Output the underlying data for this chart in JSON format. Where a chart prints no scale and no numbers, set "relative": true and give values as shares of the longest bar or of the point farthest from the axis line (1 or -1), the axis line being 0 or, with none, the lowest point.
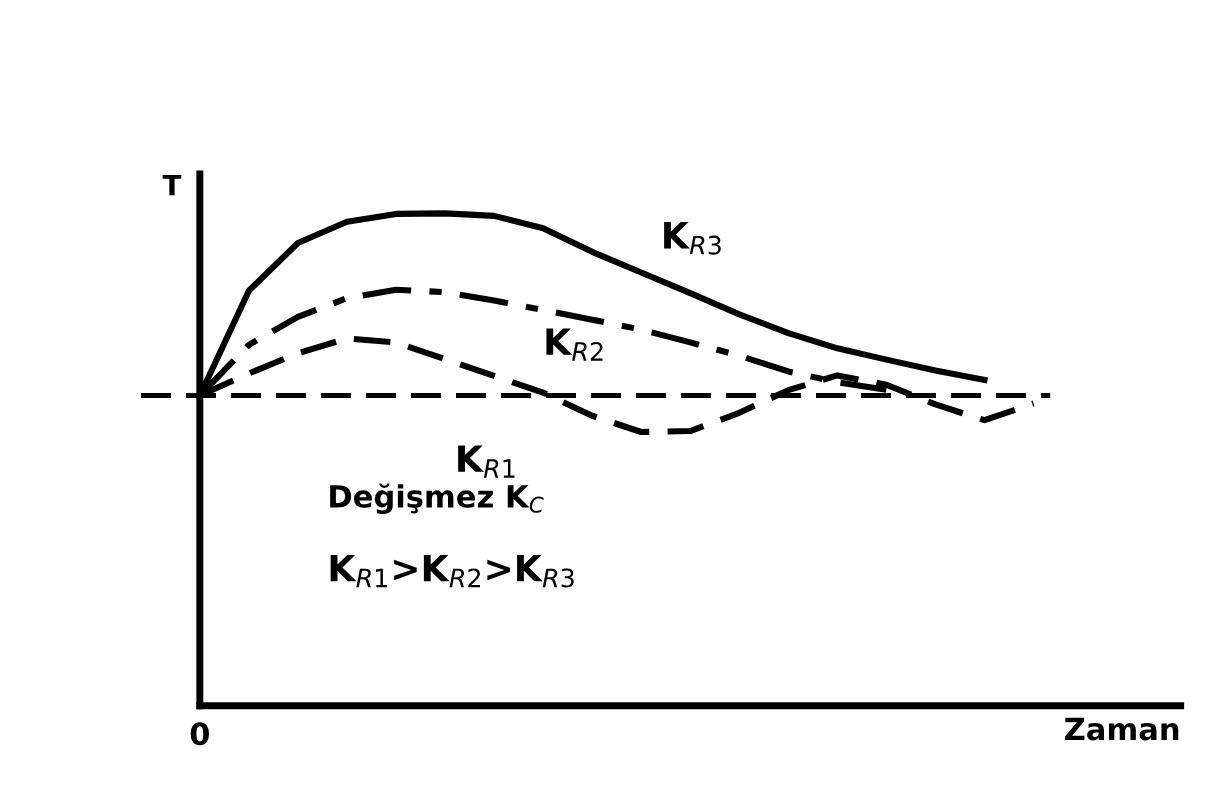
{
  "chart_data": {
    "type": "line",
    "relative": true,
    "xlabel": "Zaman",
    "ylabel": "T",
    "legend": false,
    "marker": "none",
    "categories": [
      null,
      null,
      null,
      null,
      null,
      null,
      null,
      null,
      null,
      null,
      null,
      null,
      null,
      null,
      null,
      null,
      null,
      null,
      null,
      null,
      null
    ],
    "series": [
      {
        "name": "K$_{R3}$",
        "color": "#000000",
        "line_style": "solid",
        "values": [
          0.63,
          0.843,
          0.94,
          0.983,
          0.999,
          1.0,
          0.995,
          0.97,
          0.922,
          0.88,
          0.838,
          0.795,
          0.757,
          0.726,
          0.703,
          0.681,
          0.662,
          null,
          null,
          null,
          null
        ]
      },
      {
        "name": "K$_{R2}$",
        "color": "#000000",
        "line_style": "dashdot",
        "values": [
          0.63,
          0.733,
          0.79,
          0.828,
          0.845,
          0.84,
          0.823,
          0.804,
          0.784,
          0.764,
          0.738,
          0.711,
          0.679,
          0.657,
          0.642,
          null,
          null,
          null,
          null,
          null,
          null
        ]
      },
      {
        "name": "K$_{R1}$",
        "color": "#000000",
        "line_style": "dashed",
        "values": [
          0.63,
          0.675,
          0.716,
          0.746,
          0.738,
          0.704,
          0.67,
          0.636,
          0.589,
          0.556,
          0.558,
          0.595,
          0.641,
          0.671,
          0.652,
          0.612,
          0.58,
          0.614,
          null,
          null,
          null
        ]
      }
    ],
    "ref_lines": [
      {
        "axis": "y",
        "value": 0.63,
        "color": "#000000",
        "line_style": "dashed"
      }
    ],
    "annotations": [
      "Değişmez K$_{C}$",
      "K$_{R1}$>K$_{R2}$>K$_{R3}$",
      "0"
    ]
  }
}
